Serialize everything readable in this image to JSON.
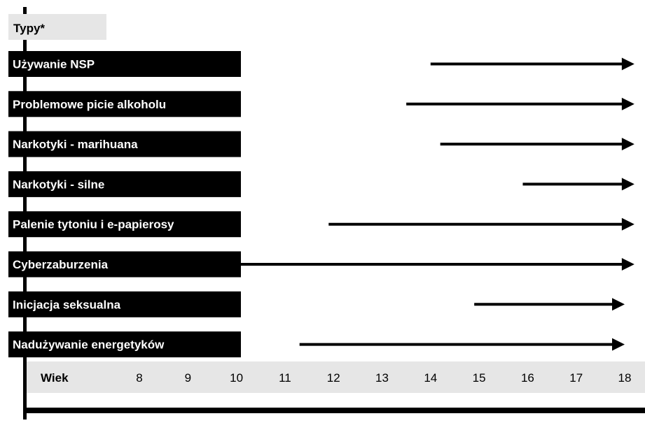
{
  "chart_data": {
    "type": "timeline",
    "header_label": "Typy*",
    "axis_label": "Wiek",
    "ticks": [
      8,
      9,
      10,
      11,
      12,
      13,
      14,
      15,
      16,
      17,
      18
    ],
    "series": [
      {
        "name": "Używanie NSP",
        "start": 14.0,
        "end": 18.2
      },
      {
        "name": "Problemowe picie alkoholu",
        "start": 13.5,
        "end": 18.2
      },
      {
        "name": "Narkotyki - marihuana",
        "start": 14.2,
        "end": 18.2
      },
      {
        "name": "Narkotyki - silne",
        "start": 15.9,
        "end": 18.2
      },
      {
        "name": "Palenie tytoniu i e-papierosy",
        "start": 11.9,
        "end": 18.2
      },
      {
        "name": "Cyberzaburzenia",
        "start": 10.0,
        "end": 18.2
      },
      {
        "name": "Inicjacja seksualna",
        "start": 14.9,
        "end": 18.0
      },
      {
        "name": "Nadużywanie energetyków",
        "start": 11.3,
        "end": 18.0
      }
    ],
    "colors": {
      "label_bg": "#000000",
      "label_text": "#ffffff",
      "header_bg": "#e6e6e6",
      "axis_band": "#e6e6e6",
      "arrow": "#000000"
    }
  }
}
